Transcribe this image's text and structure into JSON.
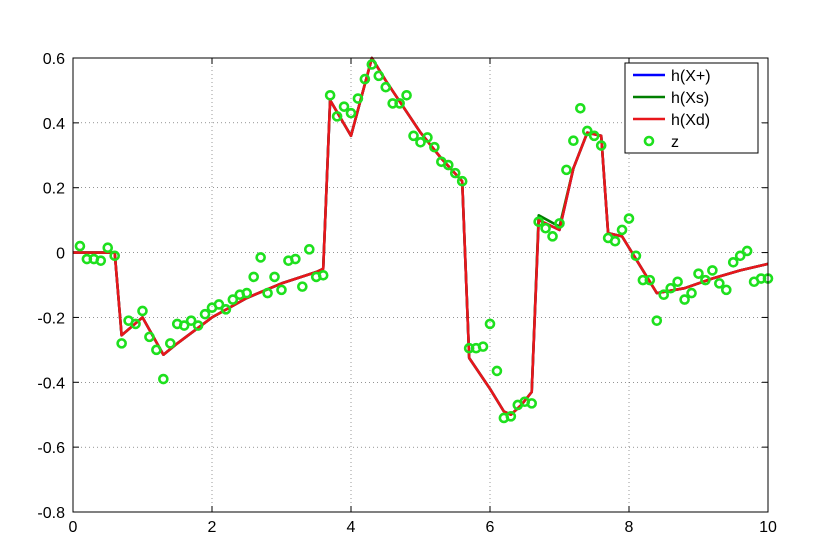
{
  "chart_data": {
    "type": "line",
    "xlim": [
      0,
      10
    ],
    "xticks": [
      0,
      2,
      4,
      6,
      8,
      10
    ],
    "ylim": [
      -0.8,
      0.6
    ],
    "yticks": [
      -0.8,
      -0.6,
      -0.4,
      -0.2,
      0,
      0.2,
      0.4,
      0.6
    ],
    "grid": true,
    "legend": "top-right",
    "series": [
      {
        "name": "h(X+)",
        "color": "#0000ff",
        "marker": "line",
        "x": [
          0,
          0.6,
          0.7,
          1.0,
          1.3,
          1.5,
          2,
          2.5,
          3,
          3.5,
          3.6,
          3.7,
          4.0,
          4.3,
          4.5,
          5,
          5.3,
          5.6,
          5.7,
          6.0,
          6.2,
          6.3,
          6.45,
          6.6,
          6.7,
          7.0,
          7.2,
          7.4,
          7.6,
          7.7,
          7.9,
          8.4,
          8.8,
          9.2,
          9.6,
          10
        ],
        "values": [
          0,
          0,
          -0.255,
          -0.2,
          -0.315,
          -0.28,
          -0.2,
          -0.14,
          -0.095,
          -0.06,
          -0.05,
          0.47,
          0.36,
          0.6,
          0.53,
          0.37,
          0.29,
          0.22,
          -0.325,
          -0.42,
          -0.49,
          -0.5,
          -0.47,
          -0.43,
          0.1,
          0.07,
          0.26,
          0.37,
          0.36,
          0.06,
          0.05,
          -0.125,
          -0.11,
          -0.08,
          -0.055,
          -0.035
        ]
      },
      {
        "name": "h(Xs)",
        "color": "#007f00",
        "marker": "line",
        "x": [
          0,
          0.6,
          0.7,
          1.0,
          1.3,
          1.5,
          2,
          2.5,
          3,
          3.5,
          3.6,
          3.7,
          4.0,
          4.3,
          4.5,
          5,
          5.3,
          5.6,
          5.7,
          6.0,
          6.2,
          6.3,
          6.45,
          6.6,
          6.7,
          7.0,
          7.2,
          7.4,
          7.6,
          7.7,
          7.9,
          8.4,
          8.8,
          9.2,
          9.6,
          10
        ],
        "values": [
          0,
          0,
          -0.255,
          -0.2,
          -0.315,
          -0.28,
          -0.2,
          -0.14,
          -0.095,
          -0.06,
          -0.05,
          0.47,
          0.36,
          0.6,
          0.53,
          0.37,
          0.29,
          0.22,
          -0.325,
          -0.42,
          -0.49,
          -0.5,
          -0.47,
          -0.43,
          0.115,
          0.08,
          0.26,
          0.37,
          0.36,
          0.06,
          0.05,
          -0.125,
          -0.11,
          -0.08,
          -0.055,
          -0.035
        ]
      },
      {
        "name": "h(Xd)",
        "color": "#e8161b",
        "marker": "line",
        "x": [
          0,
          0.6,
          0.7,
          1.0,
          1.3,
          1.5,
          2,
          2.5,
          3,
          3.5,
          3.6,
          3.7,
          4.0,
          4.3,
          4.5,
          5,
          5.3,
          5.6,
          5.7,
          6.0,
          6.2,
          6.3,
          6.45,
          6.6,
          6.7,
          7.0,
          7.2,
          7.4,
          7.6,
          7.7,
          7.9,
          8.4,
          8.8,
          9.2,
          9.6,
          10
        ],
        "values": [
          0,
          0,
          -0.255,
          -0.2,
          -0.315,
          -0.28,
          -0.2,
          -0.14,
          -0.095,
          -0.06,
          -0.05,
          0.47,
          0.36,
          0.6,
          0.53,
          0.37,
          0.29,
          0.22,
          -0.325,
          -0.42,
          -0.49,
          -0.5,
          -0.47,
          -0.43,
          0.1,
          0.07,
          0.26,
          0.37,
          0.36,
          0.06,
          0.05,
          -0.125,
          -0.11,
          -0.08,
          -0.055,
          -0.035
        ]
      },
      {
        "name": "z",
        "color": "#1ee01e",
        "marker": "circle",
        "x": [
          0.1,
          0.2,
          0.3,
          0.4,
          0.5,
          0.6,
          0.7,
          0.8,
          0.9,
          1.0,
          1.1,
          1.2,
          1.3,
          1.4,
          1.5,
          1.6,
          1.7,
          1.8,
          1.9,
          2.0,
          2.1,
          2.2,
          2.3,
          2.4,
          2.5,
          2.6,
          2.7,
          2.8,
          2.9,
          3.0,
          3.1,
          3.2,
          3.3,
          3.4,
          3.5,
          3.6,
          3.7,
          3.8,
          3.9,
          4.0,
          4.1,
          4.2,
          4.3,
          4.4,
          4.5,
          4.6,
          4.7,
          4.8,
          4.9,
          5.0,
          5.1,
          5.2,
          5.3,
          5.4,
          5.5,
          5.6,
          5.7,
          5.8,
          5.9,
          6.0,
          6.1,
          6.2,
          6.3,
          6.4,
          6.5,
          6.6,
          6.7,
          6.8,
          6.9,
          7.0,
          7.1,
          7.2,
          7.3,
          7.4,
          7.5,
          7.6,
          7.7,
          7.8,
          7.9,
          8.0,
          8.1,
          8.2,
          8.3,
          8.4,
          8.5,
          8.6,
          8.7,
          8.8,
          8.9,
          9.0,
          9.1,
          9.2,
          9.3,
          9.4,
          9.5,
          9.6,
          9.7,
          9.8,
          9.9,
          10.0
        ],
        "values": [
          0.02,
          -0.02,
          -0.02,
          -0.025,
          0.015,
          -0.01,
          -0.28,
          -0.21,
          -0.22,
          -0.18,
          -0.26,
          -0.3,
          -0.39,
          -0.28,
          -0.22,
          -0.225,
          -0.21,
          -0.225,
          -0.19,
          -0.17,
          -0.16,
          -0.175,
          -0.145,
          -0.13,
          -0.125,
          -0.075,
          -0.015,
          -0.125,
          -0.075,
          -0.115,
          -0.025,
          -0.02,
          -0.105,
          0.01,
          -0.075,
          -0.07,
          0.485,
          0.42,
          0.45,
          0.43,
          0.475,
          0.535,
          0.58,
          0.545,
          0.51,
          0.46,
          0.46,
          0.485,
          0.36,
          0.34,
          0.355,
          0.325,
          0.28,
          0.27,
          0.245,
          0.22,
          -0.295,
          -0.295,
          -0.29,
          -0.22,
          -0.365,
          -0.51,
          -0.505,
          -0.47,
          -0.46,
          -0.465,
          0.095,
          0.075,
          0.05,
          0.09,
          0.255,
          0.345,
          0.445,
          0.375,
          0.36,
          0.33,
          0.045,
          0.035,
          0.07,
          0.105,
          -0.01,
          -0.085,
          -0.085,
          -0.21,
          -0.13,
          -0.11,
          -0.09,
          -0.145,
          -0.125,
          -0.065,
          -0.085,
          -0.055,
          -0.095,
          -0.115,
          -0.03,
          -0.01,
          0.005,
          -0.09,
          -0.08,
          -0.08
        ]
      }
    ]
  }
}
